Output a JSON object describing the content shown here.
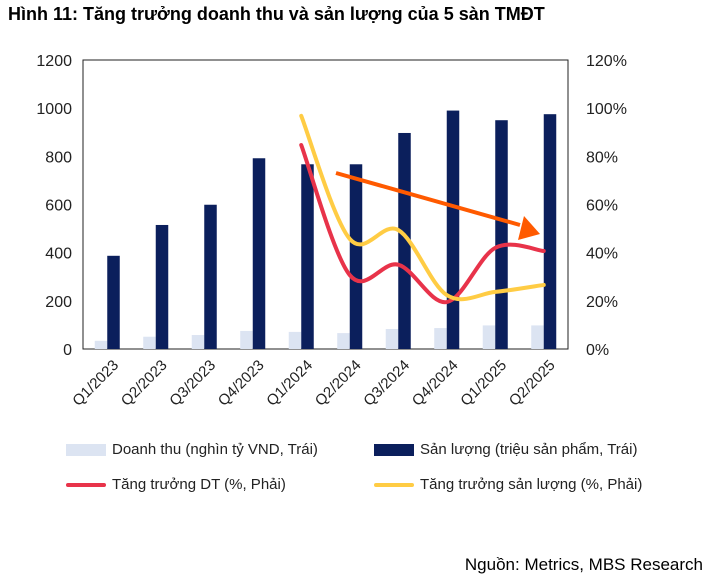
{
  "chart_data": {
    "type": "bar+line",
    "title": "Hình 11: Tăng trưởng doanh thu và sản lượng của 5 sàn TMĐT",
    "categories": [
      "Q1/2023",
      "Q2/2023",
      "Q3/2023",
      "Q4/2023",
      "Q1/2024",
      "Q2/2024",
      "Q3/2024",
      "Q4/2024",
      "Q1/2025",
      "Q2/2025"
    ],
    "y_left": {
      "ylim": [
        0,
        1200
      ],
      "ticks": [
        "0",
        "200",
        "400",
        "600",
        "800",
        "1000",
        "1200"
      ]
    },
    "y_right": {
      "ylim": [
        0,
        120
      ],
      "ticks": [
        "0%",
        "20%",
        "40%",
        "60%",
        "80%",
        "100%",
        "120%"
      ]
    },
    "series": [
      {
        "name": "Doanh thu (nghìn tỷ VND, Trái)",
        "type": "bar",
        "axis": "left",
        "color": "#dce4f2",
        "values": [
          34,
          51,
          58,
          75,
          71,
          66,
          83,
          87,
          98,
          98
        ]
      },
      {
        "name": "Sản lượng (triệu sản phẩm, Trái)",
        "type": "bar",
        "axis": "left",
        "color": "#0b1f5c",
        "values": [
          387,
          515,
          599,
          792,
          767,
          767,
          897,
          990,
          950,
          975
        ]
      },
      {
        "name": "Tăng trưởng DT (%, Phải)",
        "type": "line",
        "axis": "right",
        "color": "#e8334a",
        "values": [
          null,
          null,
          null,
          null,
          84.7,
          30.7,
          35,
          19.5,
          42,
          40.7
        ]
      },
      {
        "name": "Tăng trưởng sản lượng (%, Phải)",
        "type": "line",
        "axis": "right",
        "color": "#ffcc44",
        "values": [
          null,
          null,
          null,
          null,
          96.8,
          45.7,
          49.4,
          22.4,
          23.7,
          26.6
        ]
      }
    ],
    "annotation": {
      "type": "arrow",
      "color": "#ff5a00",
      "meaning": "downtrend"
    },
    "legend": "bottom"
  },
  "source": "Nguồn: Metrics, MBS Research"
}
